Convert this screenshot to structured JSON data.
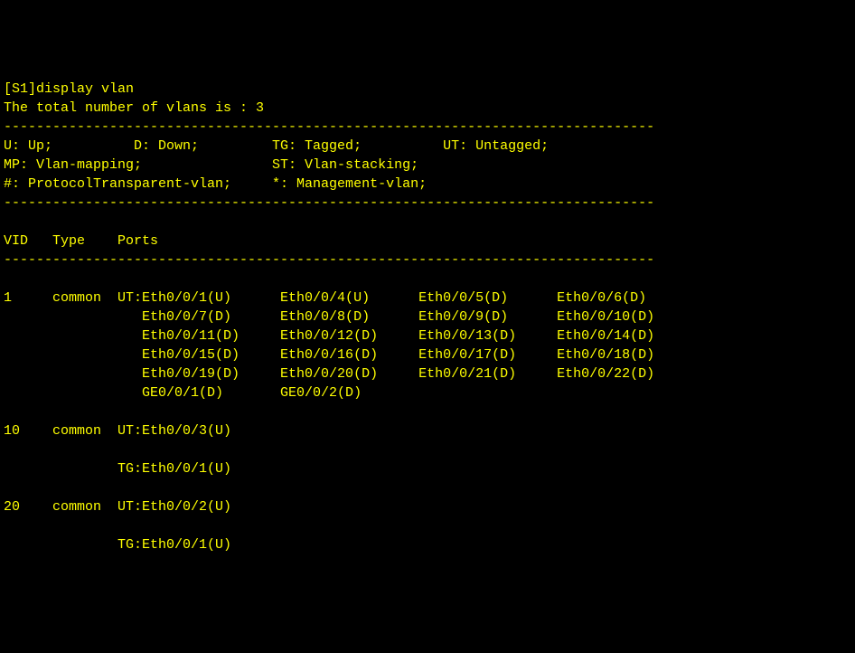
{
  "prompt_line": "[S1]display vlan",
  "total_line": "The total number of vlans is : 3",
  "dashes": "--------------------------------------------------------------------------------",
  "legend": {
    "row1": {
      "u": "U: Up;",
      "d": "D: Down;",
      "tg": "TG: Tagged;",
      "ut": "UT: Untagged;"
    },
    "row2": {
      "mp": "MP: Vlan-mapping;",
      "st": "ST: Vlan-stacking;"
    },
    "row3": {
      "hash": "#: ProtocolTransparent-vlan;",
      "star": "*: Management-vlan;"
    }
  },
  "header": {
    "vid": "VID",
    "type": "Type",
    "ports": "Ports"
  },
  "vlans": [
    {
      "vid": "1",
      "type": "common",
      "tag": "UT:",
      "rows": [
        [
          "Eth0/0/1(U)",
          "Eth0/0/4(U)",
          "Eth0/0/5(D)",
          "Eth0/0/6(D)"
        ],
        [
          "Eth0/0/7(D)",
          "Eth0/0/8(D)",
          "Eth0/0/9(D)",
          "Eth0/0/10(D)"
        ],
        [
          "Eth0/0/11(D)",
          "Eth0/0/12(D)",
          "Eth0/0/13(D)",
          "Eth0/0/14(D)"
        ],
        [
          "Eth0/0/15(D)",
          "Eth0/0/16(D)",
          "Eth0/0/17(D)",
          "Eth0/0/18(D)"
        ],
        [
          "Eth0/0/19(D)",
          "Eth0/0/20(D)",
          "Eth0/0/21(D)",
          "Eth0/0/22(D)"
        ],
        [
          "GE0/0/1(D)",
          "GE0/0/2(D)"
        ]
      ]
    },
    {
      "vid": "10",
      "type": "common",
      "tag": "UT:",
      "rows": [
        [
          "Eth0/0/3(U)"
        ]
      ],
      "tg_rows": [
        [
          "Eth0/0/1(U)"
        ]
      ]
    },
    {
      "vid": "20",
      "type": "common",
      "tag": "UT:",
      "rows": [
        [
          "Eth0/0/2(U)"
        ]
      ],
      "tg_rows": [
        [
          "Eth0/0/1(U)"
        ]
      ]
    }
  ],
  "style": {
    "background_color": "#000000",
    "text_color": "#ffff00",
    "font_family": "Courier New, monospace",
    "font_size": 15,
    "cols": {
      "vid_w": 6,
      "type_w": 8,
      "tag_w": 3,
      "port_w": 17,
      "leg_c1": 16,
      "leg_c2": 17,
      "leg_c3": 21
    }
  }
}
